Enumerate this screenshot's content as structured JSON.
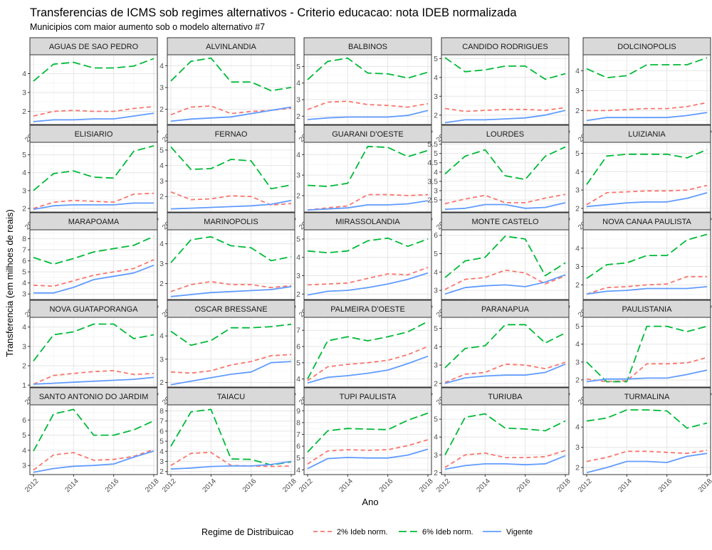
{
  "chart_data": {
    "type": "line",
    "title": "Transferencias de ICMS sob regimes alternativos - Criterio educacao: nota IDEB normalizada",
    "subtitle": "Municipios com maior aumento sob o modelo alternativo #7",
    "xlabel": "Ano",
    "ylabel": "Transferencia (em milhoes de reais)",
    "x": [
      2012,
      2013,
      2014,
      2015,
      2016,
      2017,
      2018
    ],
    "x_ticks": [
      2012,
      2014,
      2016,
      2018
    ],
    "legend": {
      "title": "Regime de Distribuicao",
      "position": "bottom",
      "entries": [
        {
          "name": "2% Ideb norm.",
          "color": "#F8766D",
          "dash": "6,4"
        },
        {
          "name": "6% Ideb norm.",
          "color": "#00BA38",
          "dash": "11,5"
        },
        {
          "name": "Vigente",
          "color": "#619CFF",
          "dash": ""
        }
      ]
    },
    "grid": true,
    "facets": [
      {
        "name": "AGUAS DE SAO PEDRO",
        "ylim": [
          1.3,
          5.0
        ],
        "yticks": [
          2,
          3,
          4
        ],
        "series": {
          "2pct": [
            1.75,
            2.0,
            2.05,
            2.0,
            2.0,
            2.15,
            2.25
          ],
          "6pct": [
            3.6,
            4.5,
            4.6,
            4.3,
            4.3,
            4.4,
            4.8
          ],
          "vig": [
            1.45,
            1.55,
            1.55,
            1.6,
            1.6,
            1.75,
            1.9
          ]
        }
      },
      {
        "name": "ALVINLANDIA",
        "ylim": [
          1.3,
          4.5
        ],
        "yticks": [
          2,
          3,
          4
        ],
        "series": {
          "2pct": [
            1.75,
            2.1,
            2.15,
            1.8,
            1.9,
            1.95,
            2.05
          ],
          "6pct": [
            3.3,
            4.2,
            4.35,
            3.25,
            3.25,
            2.85,
            3.0
          ],
          "vig": [
            1.45,
            1.55,
            1.6,
            1.65,
            1.8,
            1.95,
            2.1
          ]
        }
      },
      {
        "name": "BALBINOS",
        "ylim": [
          1.5,
          5.7
        ],
        "yticks": [
          2,
          3,
          4,
          5
        ],
        "series": {
          "2pct": [
            2.4,
            2.85,
            2.9,
            2.7,
            2.65,
            2.55,
            2.75
          ],
          "6pct": [
            4.2,
            5.3,
            5.5,
            4.6,
            4.55,
            4.3,
            4.65
          ],
          "vig": [
            1.8,
            1.9,
            1.95,
            1.95,
            1.95,
            2.05,
            2.35
          ]
        }
      },
      {
        "name": "CANDIDO RODRIGUES",
        "ylim": [
          1.5,
          5.2
        ],
        "yticks": [
          2,
          3,
          4,
          5
        ],
        "series": {
          "2pct": [
            2.35,
            2.2,
            2.25,
            2.3,
            2.3,
            2.25,
            2.4
          ],
          "6pct": [
            5.05,
            4.3,
            4.4,
            4.6,
            4.6,
            3.9,
            4.2
          ],
          "vig": [
            1.6,
            1.75,
            1.75,
            1.8,
            1.85,
            2.0,
            2.25
          ]
        }
      },
      {
        "name": "DOLCINOPOLIS",
        "ylim": [
          1.3,
          4.8
        ],
        "yticks": [
          2,
          3,
          4
        ],
        "series": {
          "2pct": [
            2.0,
            2.0,
            2.05,
            2.1,
            2.1,
            2.2,
            2.4
          ],
          "6pct": [
            4.1,
            3.65,
            3.75,
            4.3,
            4.3,
            4.3,
            4.65
          ],
          "vig": [
            1.5,
            1.65,
            1.65,
            1.65,
            1.65,
            1.75,
            1.9
          ]
        }
      },
      {
        "name": "ELISIARIO",
        "ylim": [
          1.8,
          5.7
        ],
        "yticks": [
          2,
          3,
          4,
          5
        ],
        "series": {
          "2pct": [
            2.0,
            2.35,
            2.45,
            2.4,
            2.35,
            2.8,
            2.85
          ],
          "6pct": [
            3.0,
            3.95,
            4.1,
            3.75,
            3.7,
            5.2,
            5.5
          ],
          "vig": [
            1.95,
            2.15,
            2.2,
            2.2,
            2.2,
            2.3,
            2.3
          ]
        }
      },
      {
        "name": "FERNAO",
        "ylim": [
          1.0,
          5.5
        ],
        "yticks": [
          2,
          3,
          4,
          5
        ],
        "series": {
          "2pct": [
            2.3,
            1.8,
            1.85,
            2.05,
            2.0,
            1.45,
            1.55
          ],
          "6pct": [
            5.2,
            3.75,
            3.8,
            4.4,
            4.3,
            2.5,
            2.75
          ],
          "vig": [
            1.2,
            1.25,
            1.3,
            1.35,
            1.4,
            1.5,
            1.75
          ]
        }
      },
      {
        "name": "GUARANI D'OESTE",
        "ylim": [
          1.2,
          4.6
        ],
        "yticks": [
          2,
          3,
          4
        ],
        "series": {
          "2pct": [
            1.3,
            1.4,
            1.5,
            2.05,
            2.05,
            2.0,
            2.05
          ],
          "6pct": [
            2.5,
            2.45,
            2.6,
            4.4,
            4.35,
            3.9,
            4.2
          ],
          "vig": [
            1.3,
            1.35,
            1.4,
            1.55,
            1.55,
            1.6,
            1.75
          ]
        }
      },
      {
        "name": "LOURDES",
        "ylim": [
          1.85,
          5.6
        ],
        "yticks": [
          2.5,
          3,
          3.5,
          4,
          4.5,
          5,
          5.5
        ],
        "series": {
          "2pct": [
            2.3,
            2.55,
            2.75,
            2.35,
            2.35,
            2.6,
            2.8
          ],
          "6pct": [
            3.9,
            4.85,
            5.2,
            3.8,
            3.6,
            4.85,
            5.35
          ],
          "vig": [
            2.0,
            2.05,
            2.25,
            2.25,
            2.05,
            2.1,
            2.35
          ]
        }
      },
      {
        "name": "LUIZIANIA",
        "ylim": [
          1.8,
          5.6
        ],
        "yticks": [
          2,
          3,
          4,
          5
        ],
        "series": {
          "2pct": [
            2.2,
            2.85,
            2.9,
            2.95,
            2.95,
            3.0,
            3.25
          ],
          "6pct": [
            3.3,
            4.85,
            4.95,
            4.95,
            4.95,
            4.75,
            5.2
          ],
          "vig": [
            2.1,
            2.2,
            2.3,
            2.35,
            2.35,
            2.55,
            2.85
          ]
        }
      },
      {
        "name": "MARAPOAMA",
        "ylim": [
          2.5,
          8.8
        ],
        "yticks": [
          3,
          4,
          5,
          6,
          7,
          8
        ],
        "series": {
          "2pct": [
            3.8,
            3.7,
            4.2,
            4.7,
            5.0,
            5.3,
            6.1
          ],
          "6pct": [
            6.3,
            5.7,
            6.2,
            6.8,
            7.1,
            7.4,
            8.2
          ],
          "vig": [
            3.1,
            3.1,
            3.6,
            4.3,
            4.6,
            4.9,
            5.6
          ]
        }
      },
      {
        "name": "MARINOPOLIS",
        "ylim": [
          1.2,
          4.7
        ],
        "yticks": [
          2,
          3,
          4
        ],
        "series": {
          "2pct": [
            1.6,
            1.95,
            2.1,
            1.95,
            1.95,
            1.8,
            1.9
          ],
          "6pct": [
            3.05,
            4.2,
            4.35,
            3.9,
            3.8,
            3.15,
            3.35
          ],
          "vig": [
            1.35,
            1.45,
            1.55,
            1.6,
            1.65,
            1.7,
            1.85
          ]
        }
      },
      {
        "name": "MIRASSOLANDIA",
        "ylim": [
          1.7,
          5.5
        ],
        "yticks": [
          2,
          3,
          4,
          5
        ],
        "series": {
          "2pct": [
            2.5,
            2.55,
            2.6,
            2.85,
            3.1,
            3.05,
            3.45
          ],
          "6pct": [
            4.35,
            4.25,
            4.35,
            4.9,
            5.05,
            4.6,
            5.0
          ],
          "vig": [
            1.95,
            2.15,
            2.2,
            2.35,
            2.55,
            2.8,
            3.15
          ]
        }
      },
      {
        "name": "MONTE CASTELO",
        "ylim": [
          2.5,
          6.3
        ],
        "yticks": [
          3,
          4,
          5,
          6
        ],
        "series": {
          "2pct": [
            3.05,
            3.6,
            3.7,
            4.1,
            3.95,
            3.35,
            3.8
          ],
          "6pct": [
            3.7,
            4.6,
            4.8,
            5.95,
            5.8,
            3.8,
            4.5
          ],
          "vig": [
            2.8,
            3.15,
            3.25,
            3.3,
            3.2,
            3.45,
            3.85
          ]
        }
      },
      {
        "name": "NOVA CANAA PAULISTA",
        "ylim": [
          1.2,
          5.0
        ],
        "yticks": [
          2,
          3,
          4
        ],
        "series": {
          "2pct": [
            1.5,
            1.85,
            1.9,
            2.0,
            2.05,
            2.45,
            2.45
          ],
          "6pct": [
            2.35,
            3.1,
            3.2,
            3.6,
            3.6,
            4.45,
            4.75
          ],
          "vig": [
            1.5,
            1.65,
            1.7,
            1.8,
            1.8,
            1.8,
            1.9
          ]
        }
      },
      {
        "name": "NOVA GUATAPORANGA",
        "ylim": [
          0.9,
          4.5
        ],
        "yticks": [
          1,
          2,
          3,
          4
        ],
        "series": {
          "2pct": [
            1.05,
            1.5,
            1.6,
            1.7,
            1.75,
            1.55,
            1.6
          ],
          "6pct": [
            2.25,
            3.6,
            3.75,
            4.15,
            4.15,
            3.4,
            3.6
          ],
          "vig": [
            1.05,
            1.1,
            1.15,
            1.2,
            1.25,
            1.3,
            1.4
          ]
        }
      },
      {
        "name": "OSCAR BRESSANE",
        "ylim": [
          1.8,
          4.8
        ],
        "yticks": [
          2,
          3,
          4
        ],
        "series": {
          "2pct": [
            2.45,
            2.4,
            2.5,
            2.75,
            2.9,
            3.15,
            3.2
          ],
          "6pct": [
            4.2,
            3.6,
            3.8,
            4.35,
            4.35,
            4.4,
            4.5
          ],
          "vig": [
            1.9,
            2.05,
            2.2,
            2.35,
            2.45,
            2.85,
            2.9
          ]
        }
      },
      {
        "name": "PALMEIRA D'OESTE",
        "ylim": [
          3.5,
          7.8
        ],
        "yticks": [
          4,
          5,
          6,
          7
        ],
        "series": {
          "2pct": [
            3.9,
            4.75,
            4.9,
            5.0,
            5.15,
            5.5,
            6.0
          ],
          "6pct": [
            4.0,
            6.35,
            6.6,
            6.35,
            6.6,
            6.9,
            7.55
          ],
          "vig": [
            3.75,
            4.1,
            4.2,
            4.35,
            4.55,
            4.95,
            5.4
          ]
        }
      },
      {
        "name": "PARANAPUA",
        "ylim": [
          1.8,
          5.6
        ],
        "yticks": [
          2,
          3,
          4,
          5
        ],
        "series": {
          "2pct": [
            2.05,
            2.5,
            2.6,
            3.05,
            3.0,
            2.8,
            3.15
          ],
          "6pct": [
            2.85,
            3.9,
            4.05,
            5.2,
            5.2,
            4.2,
            4.75
          ],
          "vig": [
            2.0,
            2.3,
            2.4,
            2.45,
            2.45,
            2.6,
            3.05
          ]
        }
      },
      {
        "name": "PAULISTANIA",
        "ylim": [
          1.6,
          5.5
        ],
        "yticks": [
          2,
          3,
          4,
          5
        ],
        "series": {
          "2pct": [
            2.05,
            1.9,
            1.95,
            2.9,
            2.9,
            2.95,
            3.25
          ],
          "6pct": [
            3.0,
            1.9,
            1.9,
            5.0,
            5.0,
            4.7,
            5.0
          ],
          "vig": [
            1.9,
            2.05,
            2.05,
            2.1,
            2.1,
            2.3,
            2.55
          ]
        }
      },
      {
        "name": "SANTO ANTONIO DO JARDIM",
        "ylim": [
          2.4,
          7.0
        ],
        "yticks": [
          3,
          4,
          5,
          6
        ],
        "series": {
          "2pct": [
            2.7,
            3.7,
            3.85,
            3.35,
            3.4,
            3.6,
            4.05
          ],
          "6pct": [
            3.95,
            6.4,
            6.7,
            5.0,
            5.0,
            5.35,
            5.95
          ],
          "vig": [
            2.55,
            2.8,
            2.95,
            3.0,
            3.1,
            3.55,
            3.95
          ]
        }
      },
      {
        "name": "TAIACU",
        "ylim": [
          1.7,
          8.6
        ],
        "yticks": [
          2,
          3,
          4,
          5,
          6,
          7,
          8
        ],
        "series": {
          "2pct": [
            2.6,
            3.8,
            3.9,
            2.6,
            2.55,
            2.5,
            2.55
          ],
          "6pct": [
            4.5,
            7.9,
            8.15,
            3.25,
            3.2,
            2.65,
            2.95
          ],
          "vig": [
            2.25,
            2.35,
            2.5,
            2.55,
            2.55,
            2.7,
            3.0
          ]
        }
      },
      {
        "name": "TUPI PAULISTA",
        "ylim": [
          3.6,
          9.5
        ],
        "yticks": [
          4,
          5,
          6,
          7,
          8,
          9
        ],
        "series": {
          "2pct": [
            4.5,
            5.6,
            5.7,
            5.65,
            5.7,
            6.05,
            6.55
          ],
          "6pct": [
            5.5,
            7.3,
            7.5,
            7.45,
            7.4,
            8.2,
            8.8
          ],
          "vig": [
            4.1,
            4.95,
            5.05,
            5.0,
            5.0,
            5.25,
            5.75
          ]
        }
      },
      {
        "name": "TURIUBA",
        "ylim": [
          1.9,
          5.8
        ],
        "yticks": [
          2,
          3,
          4,
          5
        ],
        "series": {
          "2pct": [
            2.3,
            3.0,
            3.1,
            2.85,
            2.85,
            2.9,
            3.25
          ],
          "6pct": [
            3.0,
            5.1,
            5.3,
            4.5,
            4.45,
            4.35,
            4.9
          ],
          "vig": [
            2.2,
            2.4,
            2.5,
            2.5,
            2.45,
            2.5,
            2.95
          ]
        }
      },
      {
        "name": "TURMALINA",
        "ylim": [
          1.65,
          5.1
        ],
        "yticks": [
          2,
          3,
          4
        ],
        "series": {
          "2pct": [
            2.3,
            2.5,
            2.8,
            2.8,
            2.75,
            2.7,
            2.85
          ],
          "6pct": [
            4.3,
            4.45,
            4.85,
            4.85,
            4.8,
            3.95,
            4.2
          ],
          "vig": [
            1.75,
            2.0,
            2.3,
            2.3,
            2.25,
            2.55,
            2.7
          ]
        }
      }
    ]
  }
}
